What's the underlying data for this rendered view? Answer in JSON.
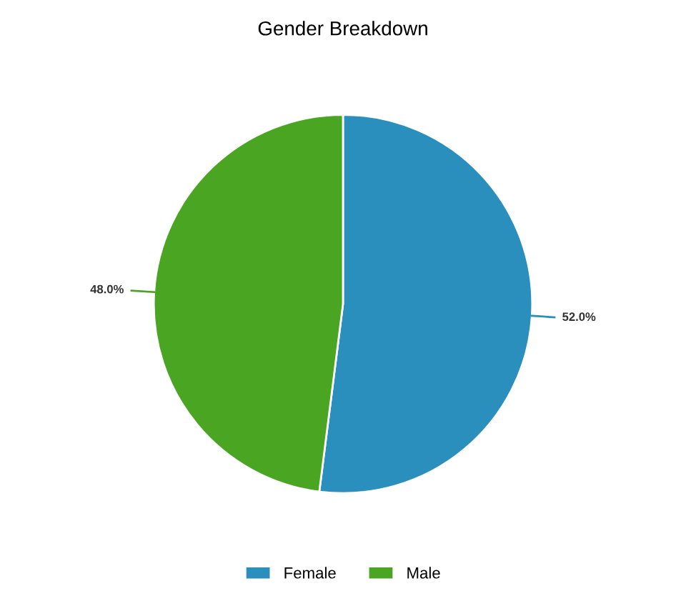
{
  "chart_data": {
    "type": "pie",
    "title": "Gender Breakdown",
    "categories": [
      "Female",
      "Male"
    ],
    "values": [
      52.0,
      48.0
    ],
    "colors": [
      "#2a8fbd",
      "#4aa523"
    ],
    "value_labels": [
      "52.0%",
      "48.0%"
    ],
    "legend": "bottom"
  }
}
